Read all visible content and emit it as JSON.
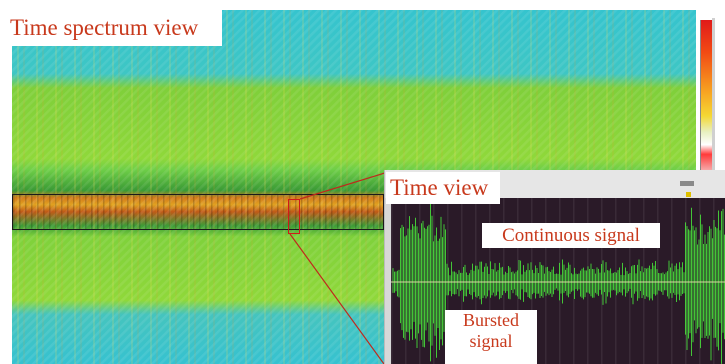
{
  "spectrum_view": {
    "title": "Time spectrum view"
  },
  "time_view": {
    "title": "Time view",
    "continuous_label": "Continuous signal",
    "bursted_label_line1": "Bursted",
    "bursted_label_line2": "signal"
  },
  "colors": {
    "label_text": "#c8391c",
    "spectrogram_bg_cyan": "#35c4ce",
    "spectrogram_band_green": "#8fd83a",
    "signal_green": "#4cff3c",
    "time_view_bg": "#2a1a28",
    "zoom_marker": "#d11a1a"
  }
}
